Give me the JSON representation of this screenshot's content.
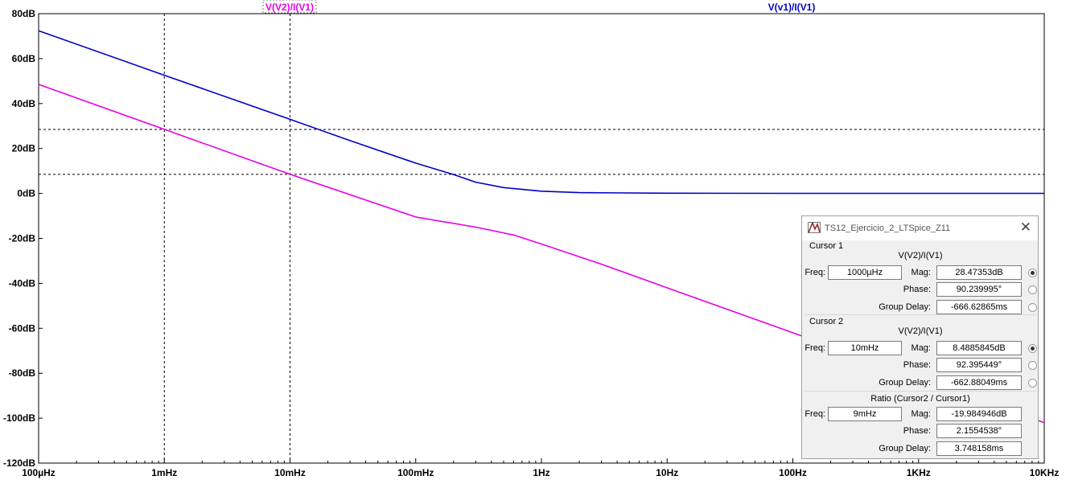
{
  "chart_data": {
    "type": "line",
    "x_scale": "log",
    "y_scale": "linear",
    "x_range_hz": [
      0.0001,
      10000
    ],
    "y_range_db": [
      -120,
      80
    ],
    "x_ticks": [
      {
        "value": 0.0001,
        "label": "100µHz"
      },
      {
        "value": 0.001,
        "label": "1mHz"
      },
      {
        "value": 0.01,
        "label": "10mHz"
      },
      {
        "value": 0.1,
        "label": "100mHz"
      },
      {
        "value": 1,
        "label": "1Hz"
      },
      {
        "value": 10,
        "label": "10Hz"
      },
      {
        "value": 100,
        "label": "100Hz"
      },
      {
        "value": 1000,
        "label": "1KHz"
      },
      {
        "value": 10000,
        "label": "10KHz"
      }
    ],
    "y_ticks": [
      {
        "value": 80,
        "label": "80dB"
      },
      {
        "value": 60,
        "label": "60dB"
      },
      {
        "value": 40,
        "label": "40dB"
      },
      {
        "value": 20,
        "label": "20dB"
      },
      {
        "value": 0,
        "label": "0dB"
      },
      {
        "value": -20,
        "label": "-20dB"
      },
      {
        "value": -40,
        "label": "-40dB"
      },
      {
        "value": -60,
        "label": "-60dB"
      },
      {
        "value": -80,
        "label": "-80dB"
      },
      {
        "value": -100,
        "label": "-100dB"
      },
      {
        "value": -120,
        "label": "-120dB"
      }
    ],
    "series": [
      {
        "name": "V(v1)/I(V1)",
        "color": "#0000c8",
        "points": [
          [
            0.0001,
            72.4
          ],
          [
            0.001,
            52.6
          ],
          [
            0.01,
            33.0
          ],
          [
            0.03,
            23.5
          ],
          [
            0.1,
            13.5
          ],
          [
            0.2,
            8.4
          ],
          [
            0.3,
            5.0
          ],
          [
            0.5,
            2.6
          ],
          [
            1,
            1.0
          ],
          [
            2,
            0.35
          ],
          [
            10,
            0.1
          ],
          [
            100,
            0.05
          ],
          [
            1000,
            0.03
          ],
          [
            10000,
            0.02
          ]
        ]
      },
      {
        "name": "V(V2)/I(V1)",
        "color": "#e600e6",
        "points": [
          [
            0.0001,
            48.5
          ],
          [
            0.001,
            28.5
          ],
          [
            0.01,
            8.5
          ],
          [
            0.1,
            -10.5
          ],
          [
            0.3,
            -15.0
          ],
          [
            0.6,
            -18.5
          ],
          [
            1,
            -22.5
          ],
          [
            3,
            -31.5
          ],
          [
            10,
            -42.0
          ],
          [
            100,
            -62.0
          ],
          [
            1000,
            -82.0
          ],
          [
            10000,
            -102.0
          ]
        ]
      }
    ],
    "cursors": {
      "x_hz": [
        0.001,
        0.01
      ],
      "y_db": [
        28.47,
        8.49
      ]
    },
    "grid": false
  },
  "cursor_window": {
    "title": "TS12_Ejercicio_2_LTSpice_Z11",
    "cursor1": {
      "heading": "Cursor 1",
      "trace": "V(V2)/I(V1)",
      "freq_label": "Freq:",
      "freq": "1000µHz",
      "mag_label": "Mag:",
      "mag": "28.47353dB",
      "phase_label": "Phase:",
      "phase": "90.239995°",
      "gd_label": "Group Delay:",
      "group_delay": "-666.62865ms"
    },
    "cursor2": {
      "heading": "Cursor 2",
      "trace": "V(V2)/I(V1)",
      "freq_label": "Freq:",
      "freq": "10mHz",
      "mag_label": "Mag:",
      "mag": "8.4885845dB",
      "phase_label": "Phase:",
      "phase": "92.395449°",
      "gd_label": "Group Delay:",
      "group_delay": "-662.88049ms"
    },
    "ratio": {
      "heading": "Ratio (Cursor2 / Cursor1)",
      "freq_label": "Freq:",
      "freq": "9mHz",
      "mag_label": "Mag:",
      "mag": "-19.984946dB",
      "phase_label": "Phase:",
      "phase": "2.1554538°",
      "gd_label": "Group Delay:",
      "group_delay": "3.748158ms"
    }
  }
}
